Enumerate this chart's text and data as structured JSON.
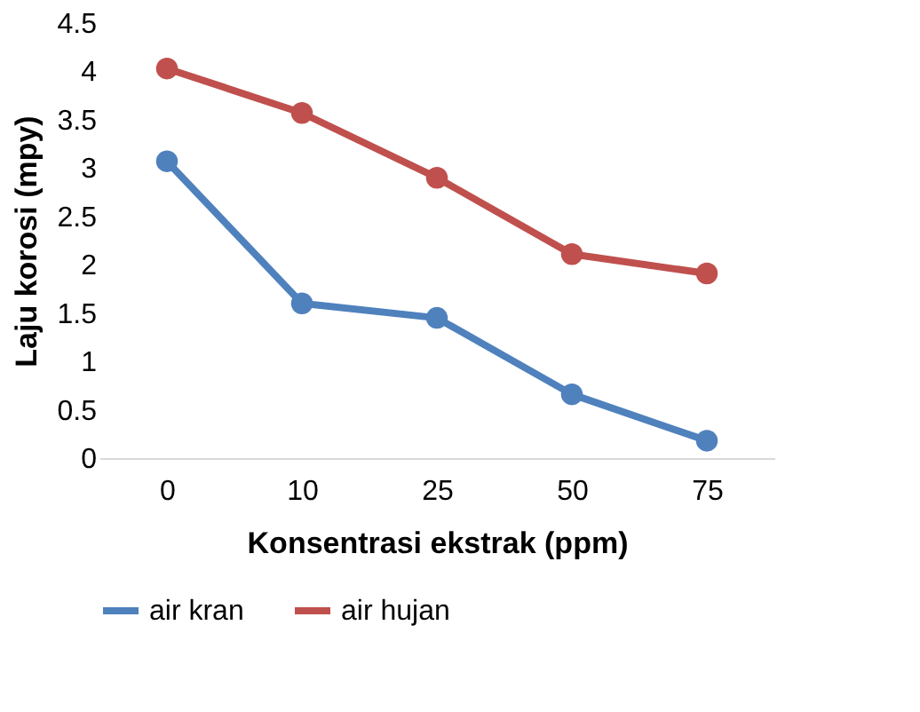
{
  "chart_data": {
    "type": "line",
    "xlabel": "Konsentrasi ekstrak (ppm)",
    "ylabel": "Laju korosi (mpy)",
    "categories": [
      "0",
      "10",
      "25",
      "50",
      "75"
    ],
    "series": [
      {
        "name": "air kran",
        "color": "#4f81bd",
        "values": [
          3.07,
          1.6,
          1.45,
          0.66,
          0.18
        ]
      },
      {
        "name": "air hujan",
        "color": "#c0504d",
        "values": [
          4.03,
          3.57,
          2.9,
          2.11,
          1.91
        ]
      }
    ],
    "ylim": [
      0,
      4.5
    ],
    "yticks": [
      0,
      0.5,
      1,
      1.5,
      2,
      2.5,
      3,
      3.5,
      4,
      4.5
    ],
    "grid": false,
    "legend": "bottom",
    "marker": "circle",
    "line_style": "solid"
  }
}
